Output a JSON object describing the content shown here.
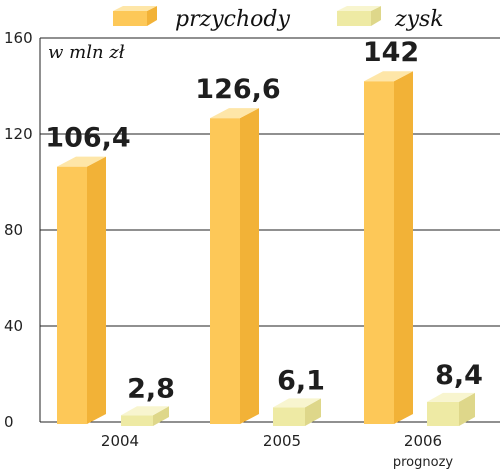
{
  "chart_data": {
    "type": "bar",
    "unit_label": "w mln zł",
    "categories": [
      "2004",
      "2005",
      "2006"
    ],
    "category_notes": [
      "",
      "",
      "prognozy"
    ],
    "series": [
      {
        "name": "przychody",
        "values": [
          106.4,
          126.6,
          142
        ]
      },
      {
        "name": "zysk",
        "values": [
          2.8,
          6.1,
          8.4
        ]
      }
    ],
    "value_labels": [
      [
        "106,4",
        "126,6",
        "142"
      ],
      [
        "2,8",
        "6,1",
        "8,4"
      ]
    ],
    "ylim": [
      0,
      160
    ],
    "yticks": [
      "0",
      "40",
      "80",
      "120",
      "160"
    ],
    "grid": true,
    "legend_position": "top",
    "colors": {
      "przychody": {
        "front": "#FDC858",
        "side": "#F2B237",
        "top": "#FEE6A8"
      },
      "zysk": {
        "front": "#EEEAA4",
        "side": "#DED78A",
        "top": "#F8F5CF"
      },
      "grid": "#222222"
    }
  }
}
